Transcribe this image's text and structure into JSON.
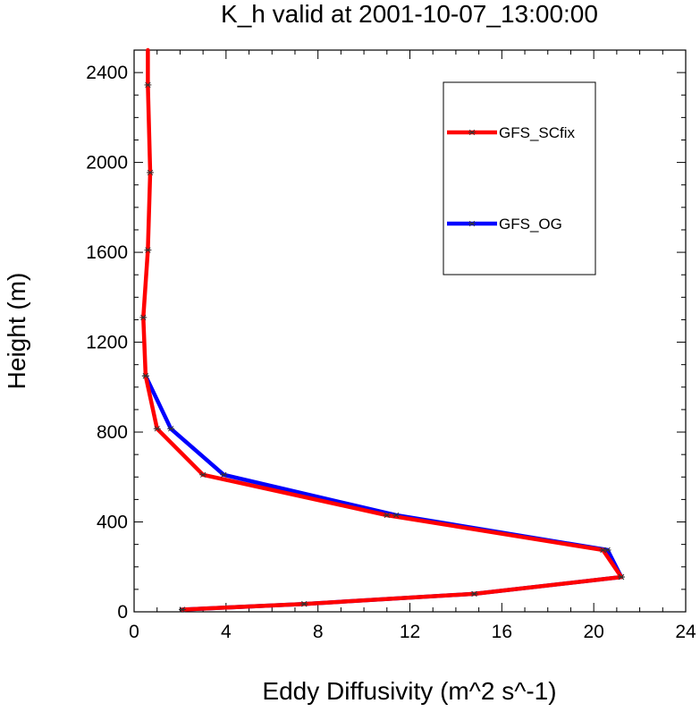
{
  "chart_data": {
    "type": "line",
    "title": "K_h valid at 2001-10-07_13:00:00",
    "xlabel": "Eddy Diffusivity (m^2 s^-1)",
    "ylabel": "Height (m)",
    "xlim": [
      0,
      24
    ],
    "ylim": [
      0,
      2500
    ],
    "xticks": [
      "0",
      "4",
      "8",
      "12",
      "16",
      "20",
      "24"
    ],
    "yticks": [
      "0",
      "400",
      "800",
      "1200",
      "1600",
      "2000",
      "2400"
    ],
    "grid": false,
    "legend_position": "top-right",
    "series": [
      {
        "name": "GFS_OG",
        "color": "#0000ff",
        "x": [
          2.1,
          7.4,
          14.8,
          21.2,
          20.6,
          11.4,
          3.9,
          1.6,
          0.5
        ],
        "y": [
          10,
          35,
          80,
          155,
          275,
          430,
          610,
          815,
          1050
        ]
      },
      {
        "name": "GFS_SCfix",
        "color": "#ff0000",
        "x": [
          2.1,
          7.4,
          14.8,
          21.2,
          20.4,
          11.0,
          3.0,
          1.0,
          0.5,
          0.4,
          0.6,
          0.7,
          0.6,
          0.6
        ],
        "y": [
          10,
          35,
          80,
          155,
          275,
          430,
          610,
          815,
          1050,
          1310,
          1610,
          1955,
          2345,
          2500
        ]
      }
    ],
    "marker_color": "#333333"
  }
}
